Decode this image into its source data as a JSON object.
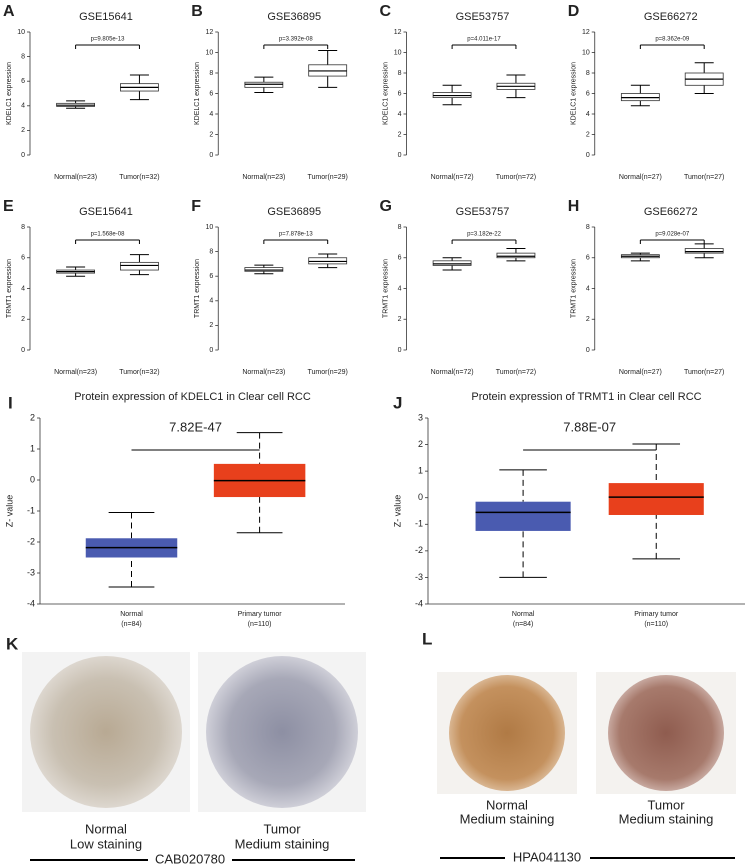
{
  "chart_data": [
    {
      "type": "box",
      "label": "A",
      "title": "GSE15641",
      "ylabel": "KDELC1 expression",
      "annotation": "p=9.805e-13",
      "categories": [
        "Normal(n=23)",
        "Tumor(n=32)"
      ],
      "ylim": [
        0,
        10
      ],
      "yticks": [
        0,
        2,
        4,
        6,
        8,
        10
      ],
      "boxes": [
        {
          "min": 3.8,
          "q1": 3.95,
          "median": 4.05,
          "q3": 4.2,
          "max": 4.4
        },
        {
          "min": 4.5,
          "q1": 5.2,
          "median": 5.5,
          "q3": 5.8,
          "max": 6.5
        }
      ]
    },
    {
      "type": "box",
      "label": "B",
      "title": "GSE36895",
      "ylabel": "KDELC1 expression",
      "annotation": "p=3.392e-08",
      "categories": [
        "Normal(n=23)",
        "Tumor(n=29)"
      ],
      "ylim": [
        0,
        12
      ],
      "yticks": [
        0,
        2,
        4,
        6,
        8,
        10,
        12
      ],
      "boxes": [
        {
          "min": 6.1,
          "q1": 6.6,
          "median": 6.9,
          "q3": 7.1,
          "max": 7.6
        },
        {
          "min": 6.6,
          "q1": 7.7,
          "median": 8.2,
          "q3": 8.8,
          "max": 10.2
        }
      ]
    },
    {
      "type": "box",
      "label": "C",
      "title": "GSE53757",
      "ylabel": "KDELC1 expression",
      "annotation": "p=4.011e-17",
      "categories": [
        "Normal(n=72)",
        "Tumor(n=72)"
      ],
      "ylim": [
        0,
        12
      ],
      "yticks": [
        0,
        2,
        4,
        6,
        8,
        10,
        12
      ],
      "boxes": [
        {
          "min": 4.9,
          "q1": 5.6,
          "median": 5.8,
          "q3": 6.1,
          "max": 6.8
        },
        {
          "min": 5.6,
          "q1": 6.4,
          "median": 6.7,
          "q3": 7.0,
          "max": 7.8
        }
      ]
    },
    {
      "type": "box",
      "label": "D",
      "title": "GSE66272",
      "ylabel": "KDELC1 expression",
      "annotation": "p=8.362e-09",
      "categories": [
        "Normal(n=27)",
        "Tumor(n=27)"
      ],
      "ylim": [
        0,
        12
      ],
      "yticks": [
        0,
        2,
        4,
        6,
        8,
        10,
        12
      ],
      "boxes": [
        {
          "min": 4.8,
          "q1": 5.3,
          "median": 5.6,
          "q3": 6.0,
          "max": 6.8
        },
        {
          "min": 6.0,
          "q1": 6.8,
          "median": 7.4,
          "q3": 8.0,
          "max": 9.0
        }
      ]
    },
    {
      "type": "box",
      "label": "E",
      "title": "GSE15641",
      "ylabel": "TRMT1 expression",
      "annotation": "p=1.568e-08",
      "categories": [
        "Normal(n=23)",
        "Tumor(n=32)"
      ],
      "ylim": [
        0,
        8
      ],
      "yticks": [
        0,
        2,
        4,
        6,
        8
      ],
      "boxes": [
        {
          "min": 4.8,
          "q1": 5.0,
          "median": 5.1,
          "q3": 5.2,
          "max": 5.4
        },
        {
          "min": 4.9,
          "q1": 5.2,
          "median": 5.5,
          "q3": 5.7,
          "max": 6.2
        }
      ]
    },
    {
      "type": "box",
      "label": "F",
      "title": "GSE36895",
      "ylabel": "TRMT1 expression",
      "annotation": "p=7.878e-13",
      "categories": [
        "Normal(n=23)",
        "Tumor(n=29)"
      ],
      "ylim": [
        0,
        10
      ],
      "yticks": [
        0,
        2,
        4,
        6,
        8,
        10
      ],
      "boxes": [
        {
          "min": 6.2,
          "q1": 6.4,
          "median": 6.5,
          "q3": 6.7,
          "max": 6.9
        },
        {
          "min": 6.7,
          "q1": 7.0,
          "median": 7.2,
          "q3": 7.5,
          "max": 7.8
        }
      ]
    },
    {
      "type": "box",
      "label": "G",
      "title": "GSE53757",
      "ylabel": "TRMT1 expression",
      "annotation": "p=3.182e-22",
      "categories": [
        "Normal(n=72)",
        "Tumor(n=72)"
      ],
      "ylim": [
        0,
        8
      ],
      "yticks": [
        0,
        2,
        4,
        6,
        8
      ],
      "boxes": [
        {
          "min": 5.2,
          "q1": 5.5,
          "median": 5.6,
          "q3": 5.8,
          "max": 6.0
        },
        {
          "min": 5.8,
          "q1": 6.0,
          "median": 6.1,
          "q3": 6.3,
          "max": 6.6
        }
      ]
    },
    {
      "type": "box",
      "label": "H",
      "title": "GSE66272",
      "ylabel": "TRMT1 expression",
      "annotation": "p=9.028e-07",
      "categories": [
        "Normal(n=27)",
        "Tumor(n=27)"
      ],
      "ylim": [
        0,
        8
      ],
      "yticks": [
        0,
        2,
        4,
        6,
        8
      ],
      "boxes": [
        {
          "min": 5.8,
          "q1": 6.0,
          "median": 6.1,
          "q3": 6.2,
          "max": 6.3
        },
        {
          "min": 6.0,
          "q1": 6.3,
          "median": 6.4,
          "q3": 6.6,
          "max": 6.9
        }
      ]
    },
    {
      "type": "box",
      "label": "I",
      "title": "Protein expression of KDELC1 in Clear cell RCC",
      "ylabel": "Z- value",
      "annotation": "7.82E-47",
      "categories": [
        "Normal",
        "Primary tumor"
      ],
      "counts": [
        "(n=84)",
        "(n=110)"
      ],
      "box_colors": [
        "#4a5bb0",
        "#e8401c"
      ],
      "ylim": [
        -4,
        2
      ],
      "yticks": [
        -4,
        -3,
        -2,
        -1,
        0,
        1,
        2
      ],
      "boxes": [
        {
          "min": -3.45,
          "q1": -2.5,
          "median": -2.18,
          "q3": -1.88,
          "max": -1.05
        },
        {
          "min": -1.7,
          "q1": -0.55,
          "median": -0.02,
          "q3": 0.52,
          "max": 1.53
        }
      ]
    },
    {
      "type": "box",
      "label": "J",
      "title": "Protein expression of TRMT1 in Clear cell RCC",
      "ylabel": "Z- value",
      "annotation": "7.88E-07",
      "categories": [
        "Normal",
        "Primary tumor"
      ],
      "counts": [
        "(n=84)",
        "(n=110)"
      ],
      "box_colors": [
        "#4a5bb0",
        "#e8401c"
      ],
      "ylim": [
        -4,
        3
      ],
      "yticks": [
        -4,
        -3,
        -2,
        -1,
        0,
        1,
        2,
        3
      ],
      "boxes": [
        {
          "min": -3.0,
          "q1": -1.25,
          "median": -0.55,
          "q3": -0.15,
          "max": 1.05
        },
        {
          "min": -2.3,
          "q1": -0.65,
          "median": 0.02,
          "q3": 0.55,
          "max": 2.02
        }
      ]
    }
  ],
  "tissue_panels": [
    {
      "label": "K",
      "images": [
        {
          "caption": "Normal",
          "staining": "Low staining"
        },
        {
          "caption": "Tumor",
          "staining": "Medium staining"
        }
      ],
      "antibody": "CAB020780"
    },
    {
      "label": "L",
      "images": [
        {
          "caption": "Normal",
          "staining": "Medium staining"
        },
        {
          "caption": "Tumor",
          "staining": "Medium staining"
        }
      ],
      "antibody": "HPA041130"
    }
  ]
}
